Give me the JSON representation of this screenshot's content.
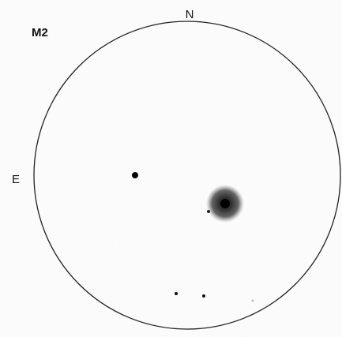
{
  "title": "M2",
  "labels": {
    "north": "N",
    "east": "E"
  }
}
